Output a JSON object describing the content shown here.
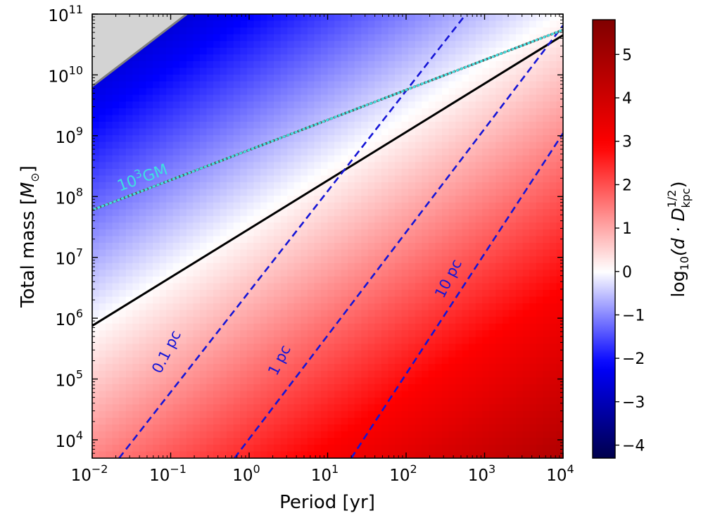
{
  "chart_data": {
    "type": "heatmap",
    "xlabel": "Period [yr]",
    "ylabel_prefix": "Total mass [",
    "ylabel_symbol": "M",
    "ylabel_sub": "⊙",
    "ylabel_suffix": "]",
    "x_scale": "log",
    "y_scale": "log",
    "xlim": [
      0.01,
      10000
    ],
    "ylim": [
      5000,
      100000000000.0
    ],
    "x_ticks": [
      {
        "base": "10",
        "exp": "−2"
      },
      {
        "base": "10",
        "exp": "−1"
      },
      {
        "base": "10",
        "exp": "0"
      },
      {
        "base": "10",
        "exp": "1"
      },
      {
        "base": "10",
        "exp": "2"
      },
      {
        "base": "10",
        "exp": "3"
      },
      {
        "base": "10",
        "exp": "4"
      }
    ],
    "y_ticks": [
      {
        "base": "10",
        "exp": "4"
      },
      {
        "base": "10",
        "exp": "5"
      },
      {
        "base": "10",
        "exp": "6"
      },
      {
        "base": "10",
        "exp": "7"
      },
      {
        "base": "10",
        "exp": "8"
      },
      {
        "base": "10",
        "exp": "9"
      },
      {
        "base": "10",
        "exp": "10"
      },
      {
        "base": "10",
        "exp": "11"
      }
    ],
    "colorbar": {
      "label_prefix": "log",
      "label_sub": "10",
      "label_open": "(d · D",
      "label_sup": "1/2",
      "label_sub2": "kpc",
      "label_close": ")",
      "range": [
        -4.3,
        5.8
      ],
      "ticks": [
        "−4",
        "−3",
        "−2",
        "−1",
        "0",
        "1",
        "2",
        "3",
        "4",
        "5"
      ],
      "colormap": "seismic"
    },
    "field": {
      "zero_contour": [
        [
          0.01,
          750000
        ],
        [
          10000,
          45000000000.0
        ]
      ],
      "description_slope_logM_per_logP": 1.6,
      "value_gradient": "increases toward long period / low mass"
    },
    "lines": [
      {
        "name": "0.1 pc",
        "style": "dashed",
        "color": "#1515d6",
        "points": [
          [
            0.022,
            5000
          ],
          [
            580,
            100000000000.0
          ]
        ]
      },
      {
        "name": "1 pc",
        "style": "dashed",
        "color": "#1515d6",
        "points": [
          [
            0.65,
            5000
          ],
          [
            10000,
            65000000000.0
          ]
        ]
      },
      {
        "name": "10 pc",
        "style": "dashed",
        "color": "#1515d6",
        "points": [
          [
            20,
            5000
          ],
          [
            10000,
            1100000000.0
          ]
        ]
      },
      {
        "name": "10³GM",
        "style": "dotted",
        "color": "#3fe0e0",
        "points": [
          [
            0.01,
            60000000
          ],
          [
            10000,
            55000000000.0
          ]
        ]
      }
    ],
    "excluded_region": {
      "color": "#d3d3d3",
      "boundary": [
        [
          0.01,
          6500000000
        ],
        [
          0.16,
          100000000000.0
        ]
      ]
    }
  },
  "labels": {
    "line_0p1": "0.1 pc",
    "line_1": "1 pc",
    "line_10": "10 pc",
    "gm_base": "10",
    "gm_exp": "3",
    "gm_rest": "GM"
  },
  "colors": {
    "dashed_line": "#1515d6",
    "dotted_line": "#3fe0e0",
    "zero_contour": "#000000",
    "excluded_fill": "#d3d3d3",
    "excluded_edge": "#7f7f7f"
  }
}
